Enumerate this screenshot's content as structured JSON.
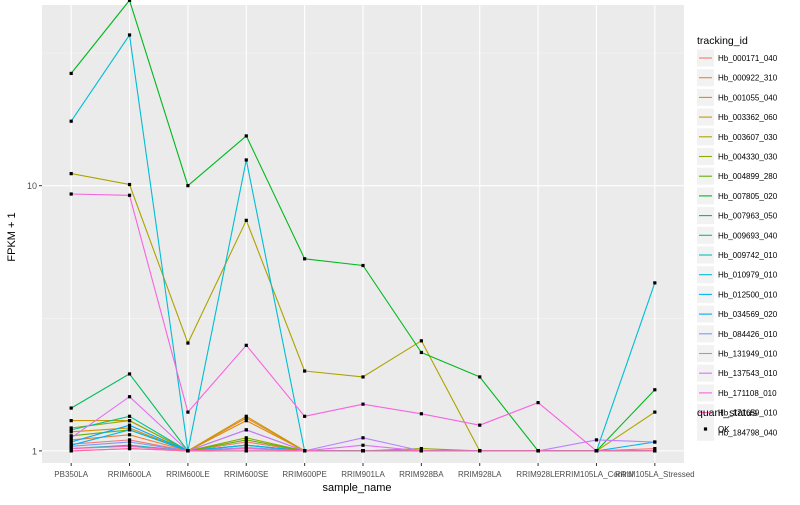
{
  "chart_data": {
    "type": "line",
    "xlabel": "sample_name",
    "ylabel": "FPKM + 1",
    "y_scale": "log10",
    "ylim": [
      0.9,
      48
    ],
    "grid": true,
    "legend_position": "right",
    "categories": [
      "PB350LA",
      "RRIM600LA",
      "RRIM600LE",
      "RRIM600SE",
      "RRIM600PE",
      "RRIM901LA",
      "RRIM928BA",
      "RRIM928LA",
      "RRIM928LE",
      "RRIM105LA_Control",
      "RRIM105LA_Stressed"
    ],
    "y_ticks": [
      {
        "value": 1,
        "label": "1"
      },
      {
        "value": 10,
        "label": "10"
      }
    ],
    "legend_title": "tracking_id",
    "series": [
      {
        "name": "Hb_000171_040",
        "color": "#F8766D",
        "values": [
          1.06,
          1.1,
          1.0,
          1.08,
          1.0,
          1.0,
          1.0,
          1.0,
          1.0,
          1.0,
          1.02
        ]
      },
      {
        "name": "Hb_000922_310",
        "color": "#EC8239",
        "values": [
          1.1,
          1.15,
          1.0,
          1.33,
          1.0,
          1.0,
          1.0,
          1.0,
          1.0,
          1.0,
          1.0
        ]
      },
      {
        "name": "Hb_001055_040",
        "color": "#DB8E00",
        "values": [
          1.18,
          1.22,
          1.0,
          1.3,
          1.0,
          1.0,
          1.0,
          1.0,
          1.0,
          1.0,
          1.0
        ]
      },
      {
        "name": "Hb_003362_060",
        "color": "#C79800",
        "values": [
          1.3,
          1.3,
          1.0,
          1.35,
          1.0,
          1.0,
          1.0,
          1.0,
          1.0,
          1.0,
          1.0
        ]
      },
      {
        "name": "Hb_003607_030",
        "color": "#AEA200",
        "values": [
          11.1,
          10.1,
          2.55,
          7.4,
          2.0,
          1.9,
          2.6,
          1.0,
          1.0,
          1.0,
          1.4
        ]
      },
      {
        "name": "Hb_004330_030",
        "color": "#8FAA00",
        "values": [
          1.22,
          1.3,
          1.0,
          1.12,
          1.0,
          1.0,
          1.02,
          1.0,
          1.0,
          1.0,
          1.0
        ]
      },
      {
        "name": "Hb_004899_280",
        "color": "#64B200",
        "values": [
          1.14,
          1.2,
          1.0,
          1.1,
          1.0,
          1.0,
          1.0,
          1.0,
          1.0,
          1.0,
          1.0
        ]
      },
      {
        "name": "Hb_007805_020",
        "color": "#00B81B",
        "values": [
          26.5,
          50.0,
          10.0,
          15.4,
          5.3,
          5.0,
          2.35,
          1.9,
          1.0,
          1.0,
          1.7
        ]
      },
      {
        "name": "Hb_007963_050",
        "color": "#00BD5C",
        "values": [
          1.45,
          1.95,
          1.0,
          1.05,
          1.0,
          1.0,
          1.0,
          1.0,
          1.0,
          1.0,
          1.0
        ]
      },
      {
        "name": "Hb_009693_040",
        "color": "#00C08E",
        "values": [
          1.2,
          1.35,
          1.0,
          1.05,
          1.0,
          1.0,
          1.0,
          1.0,
          1.0,
          1.0,
          1.0
        ]
      },
      {
        "name": "Hb_009742_010",
        "color": "#00C1B7",
        "values": [
          1.02,
          1.05,
          1.0,
          1.0,
          1.0,
          1.0,
          1.0,
          1.0,
          1.0,
          1.0,
          1.0
        ]
      },
      {
        "name": "Hb_010979_010",
        "color": "#00BDD4",
        "values": [
          17.5,
          37.0,
          1.0,
          12.5,
          1.0,
          1.0,
          1.0,
          1.0,
          1.0,
          1.0,
          4.3
        ]
      },
      {
        "name": "Hb_012500_010",
        "color": "#00B5EE",
        "values": [
          1.05,
          1.2,
          1.0,
          1.05,
          1.0,
          1.0,
          1.0,
          1.0,
          1.0,
          1.0,
          1.08
        ]
      },
      {
        "name": "Hb_034569_020",
        "color": "#00A7FF",
        "values": [
          1.08,
          1.25,
          1.0,
          1.2,
          1.0,
          1.0,
          1.0,
          1.0,
          1.0,
          1.0,
          1.0
        ]
      },
      {
        "name": "Hb_084426_010",
        "color": "#7F96FF",
        "values": [
          1.04,
          1.08,
          1.0,
          1.03,
          1.0,
          1.0,
          1.0,
          1.0,
          1.0,
          1.0,
          1.0
        ]
      },
      {
        "name": "Hb_131949_010",
        "color": "#BC81FF",
        "values": [
          1.0,
          1.02,
          1.0,
          1.0,
          1.0,
          1.12,
          1.0,
          1.0,
          1.0,
          1.1,
          1.08
        ]
      },
      {
        "name": "Hb_137543_010",
        "color": "#E26EF7",
        "values": [
          1.12,
          1.6,
          1.0,
          1.2,
          1.0,
          1.05,
          1.0,
          1.0,
          1.0,
          1.0,
          1.0
        ]
      },
      {
        "name": "Hb_171108_010",
        "color": "#F863DF",
        "values": [
          9.3,
          9.2,
          1.4,
          2.5,
          1.35,
          1.5,
          1.38,
          1.25,
          1.52,
          1.0,
          1.0
        ]
      },
      {
        "name": "Hb_171659_010",
        "color": "#FF62BF",
        "values": [
          1.02,
          1.04,
          1.0,
          1.02,
          1.0,
          1.0,
          1.0,
          1.0,
          1.0,
          1.0,
          1.0
        ]
      },
      {
        "name": "Hb_184798_040",
        "color": "#FF6A98",
        "values": [
          1.0,
          1.02,
          1.0,
          1.0,
          1.0,
          1.0,
          1.0,
          1.0,
          1.0,
          1.0,
          1.0
        ]
      }
    ],
    "shape_legend": {
      "title": "quant_status",
      "entries": [
        "OK"
      ]
    }
  }
}
